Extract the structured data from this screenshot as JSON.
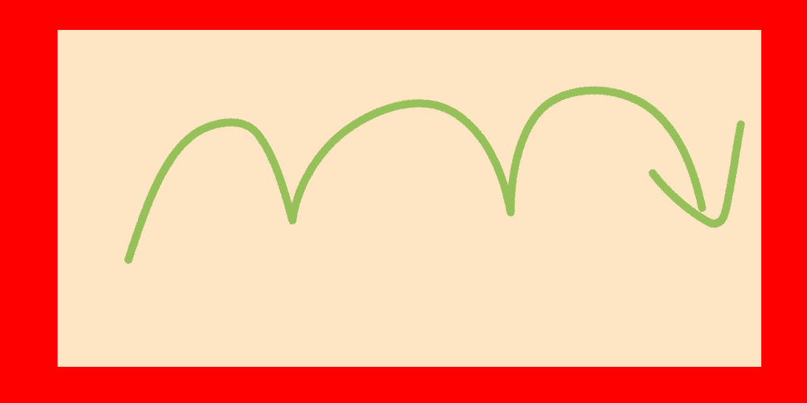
{
  "colors": {
    "frame": "#ff0000",
    "panel": "#fee6c4",
    "arrow": "#95c05a"
  },
  "graphic": {
    "icon": "looping-arrow-icon",
    "direction": "right-then-down",
    "loops": 3
  }
}
